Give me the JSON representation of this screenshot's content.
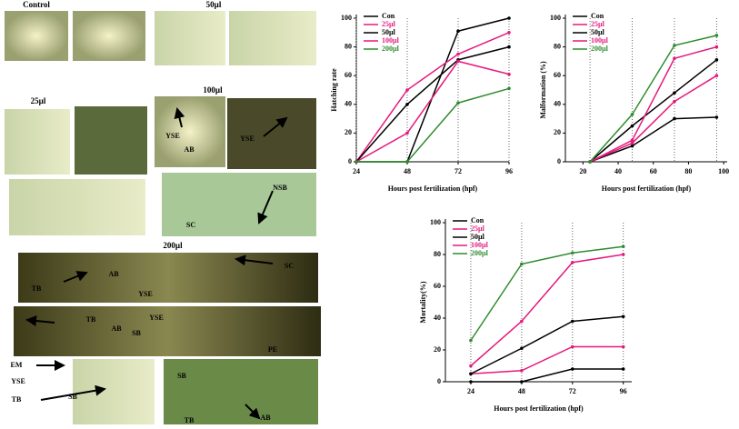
{
  "images": {
    "headings": [
      "Control",
      "50µl",
      "25µl",
      "100µl",
      "200µl"
    ],
    "annotations": [
      "YSE",
      "AB",
      "YSE",
      "NSB",
      "SC",
      "TB",
      "AB",
      "SC",
      "YSE",
      "TB",
      "AB",
      "SB",
      "YSE",
      "PE",
      "EM",
      "YSE",
      "TB",
      "SB",
      "SB",
      "TB",
      "AB"
    ]
  },
  "chart_data": [
    {
      "type": "line",
      "x_label": "Hours post fertilization (hpf)",
      "y_label": "Hatching rate",
      "x": [
        24,
        48,
        72,
        96
      ],
      "xlim": [
        24,
        96
      ],
      "xticks": [
        24,
        48,
        72,
        96
      ],
      "ylim": [
        0,
        100
      ],
      "yticks": [
        0,
        20,
        40,
        60,
        80,
        100
      ],
      "legend": "upper left",
      "vlines": true,
      "series": [
        {
          "name": "Con",
          "color": "#000000",
          "values": [
            0,
            0,
            91,
            100
          ]
        },
        {
          "name": "25µl",
          "color": "#e6197d",
          "values": [
            0,
            50,
            75,
            90
          ]
        },
        {
          "name": "50µl",
          "color": "#000000",
          "values": [
            0,
            40,
            71,
            80
          ]
        },
        {
          "name": "100µl",
          "color": "#e6197d",
          "values": [
            0,
            20,
            70,
            61
          ]
        },
        {
          "name": "200µl",
          "color": "#2e8b2e",
          "values": [
            0,
            0,
            41,
            51
          ]
        }
      ]
    },
    {
      "type": "line",
      "x_label": "Hours post fertilization (hpf)",
      "y_label": "Malformation (%)",
      "x": [
        24,
        48,
        72,
        96
      ],
      "xlim": [
        10,
        102
      ],
      "xticks": [
        20,
        40,
        60,
        80,
        100
      ],
      "ylim": [
        0,
        100
      ],
      "yticks": [
        0,
        20,
        40,
        60,
        80,
        100
      ],
      "legend": "upper left",
      "vlines": true,
      "series": [
        {
          "name": "Con",
          "color": "#000000",
          "values": [
            0,
            11,
            30,
            31
          ]
        },
        {
          "name": "25µl",
          "color": "#e6197d",
          "values": [
            0,
            13,
            42,
            60
          ]
        },
        {
          "name": "50µl",
          "color": "#000000",
          "values": [
            0,
            25,
            48,
            71
          ]
        },
        {
          "name": "100µl",
          "color": "#e6197d",
          "values": [
            0,
            15,
            72,
            80
          ]
        },
        {
          "name": "200µl",
          "color": "#2e8b2e",
          "values": [
            0,
            33,
            81,
            88
          ]
        }
      ]
    },
    {
      "type": "line",
      "x_label": "Hours post fertilization (hpf)",
      "y_label": "Mortality(%)",
      "x": [
        24,
        48,
        72,
        96
      ],
      "xlim": [
        12,
        100
      ],
      "xticks": [
        24,
        48,
        72,
        96
      ],
      "ylim": [
        0,
        100
      ],
      "yticks": [
        0,
        20,
        40,
        60,
        80,
        100
      ],
      "legend": "upper left",
      "vlines": true,
      "series": [
        {
          "name": "Con",
          "color": "#000000",
          "values": [
            0,
            0,
            8,
            8
          ]
        },
        {
          "name": "25µl",
          "color": "#e6197d",
          "values": [
            5,
            7,
            22,
            22
          ]
        },
        {
          "name": "50µl",
          "color": "#000000",
          "values": [
            5,
            21,
            38,
            41
          ]
        },
        {
          "name": "100µl",
          "color": "#e6197d",
          "values": [
            10,
            38,
            75,
            80
          ]
        },
        {
          "name": "200µl",
          "color": "#2e8b2e",
          "values": [
            26,
            74,
            81,
            85
          ]
        }
      ]
    }
  ]
}
